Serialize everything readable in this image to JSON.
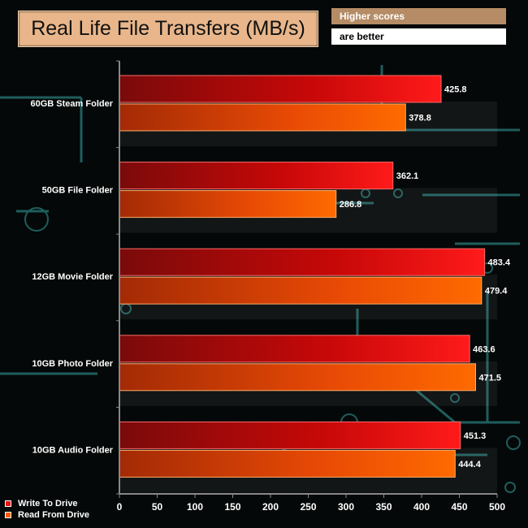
{
  "header": {
    "title": "Real Life File Transfers (MB/s)",
    "note_line1": "Higher scores",
    "note_line2": "are better"
  },
  "colors": {
    "write": "#ee1111",
    "read": "#ff5a00",
    "title_bg": "#e8b68a",
    "note_bg": "#b58c66"
  },
  "chart_data": {
    "type": "bar",
    "orientation": "horizontal",
    "categories": [
      "60GB Steam Folder",
      "50GB File Folder",
      "12GB Movie Folder",
      "10GB Photo Folder",
      "10GB Audio Folder"
    ],
    "series": [
      {
        "name": "Write To  Drive",
        "values": [
          425.8,
          362.1,
          483.4,
          463.6,
          451.3
        ]
      },
      {
        "name": "Read From  Drive",
        "values": [
          378.8,
          286.8,
          479.4,
          471.5,
          444.4
        ]
      }
    ],
    "xlim": [
      0,
      500
    ],
    "xticks": [
      0,
      50,
      100,
      150,
      200,
      250,
      300,
      350,
      400,
      450,
      500
    ],
    "legend_position": "bottom-left",
    "grid": false
  }
}
